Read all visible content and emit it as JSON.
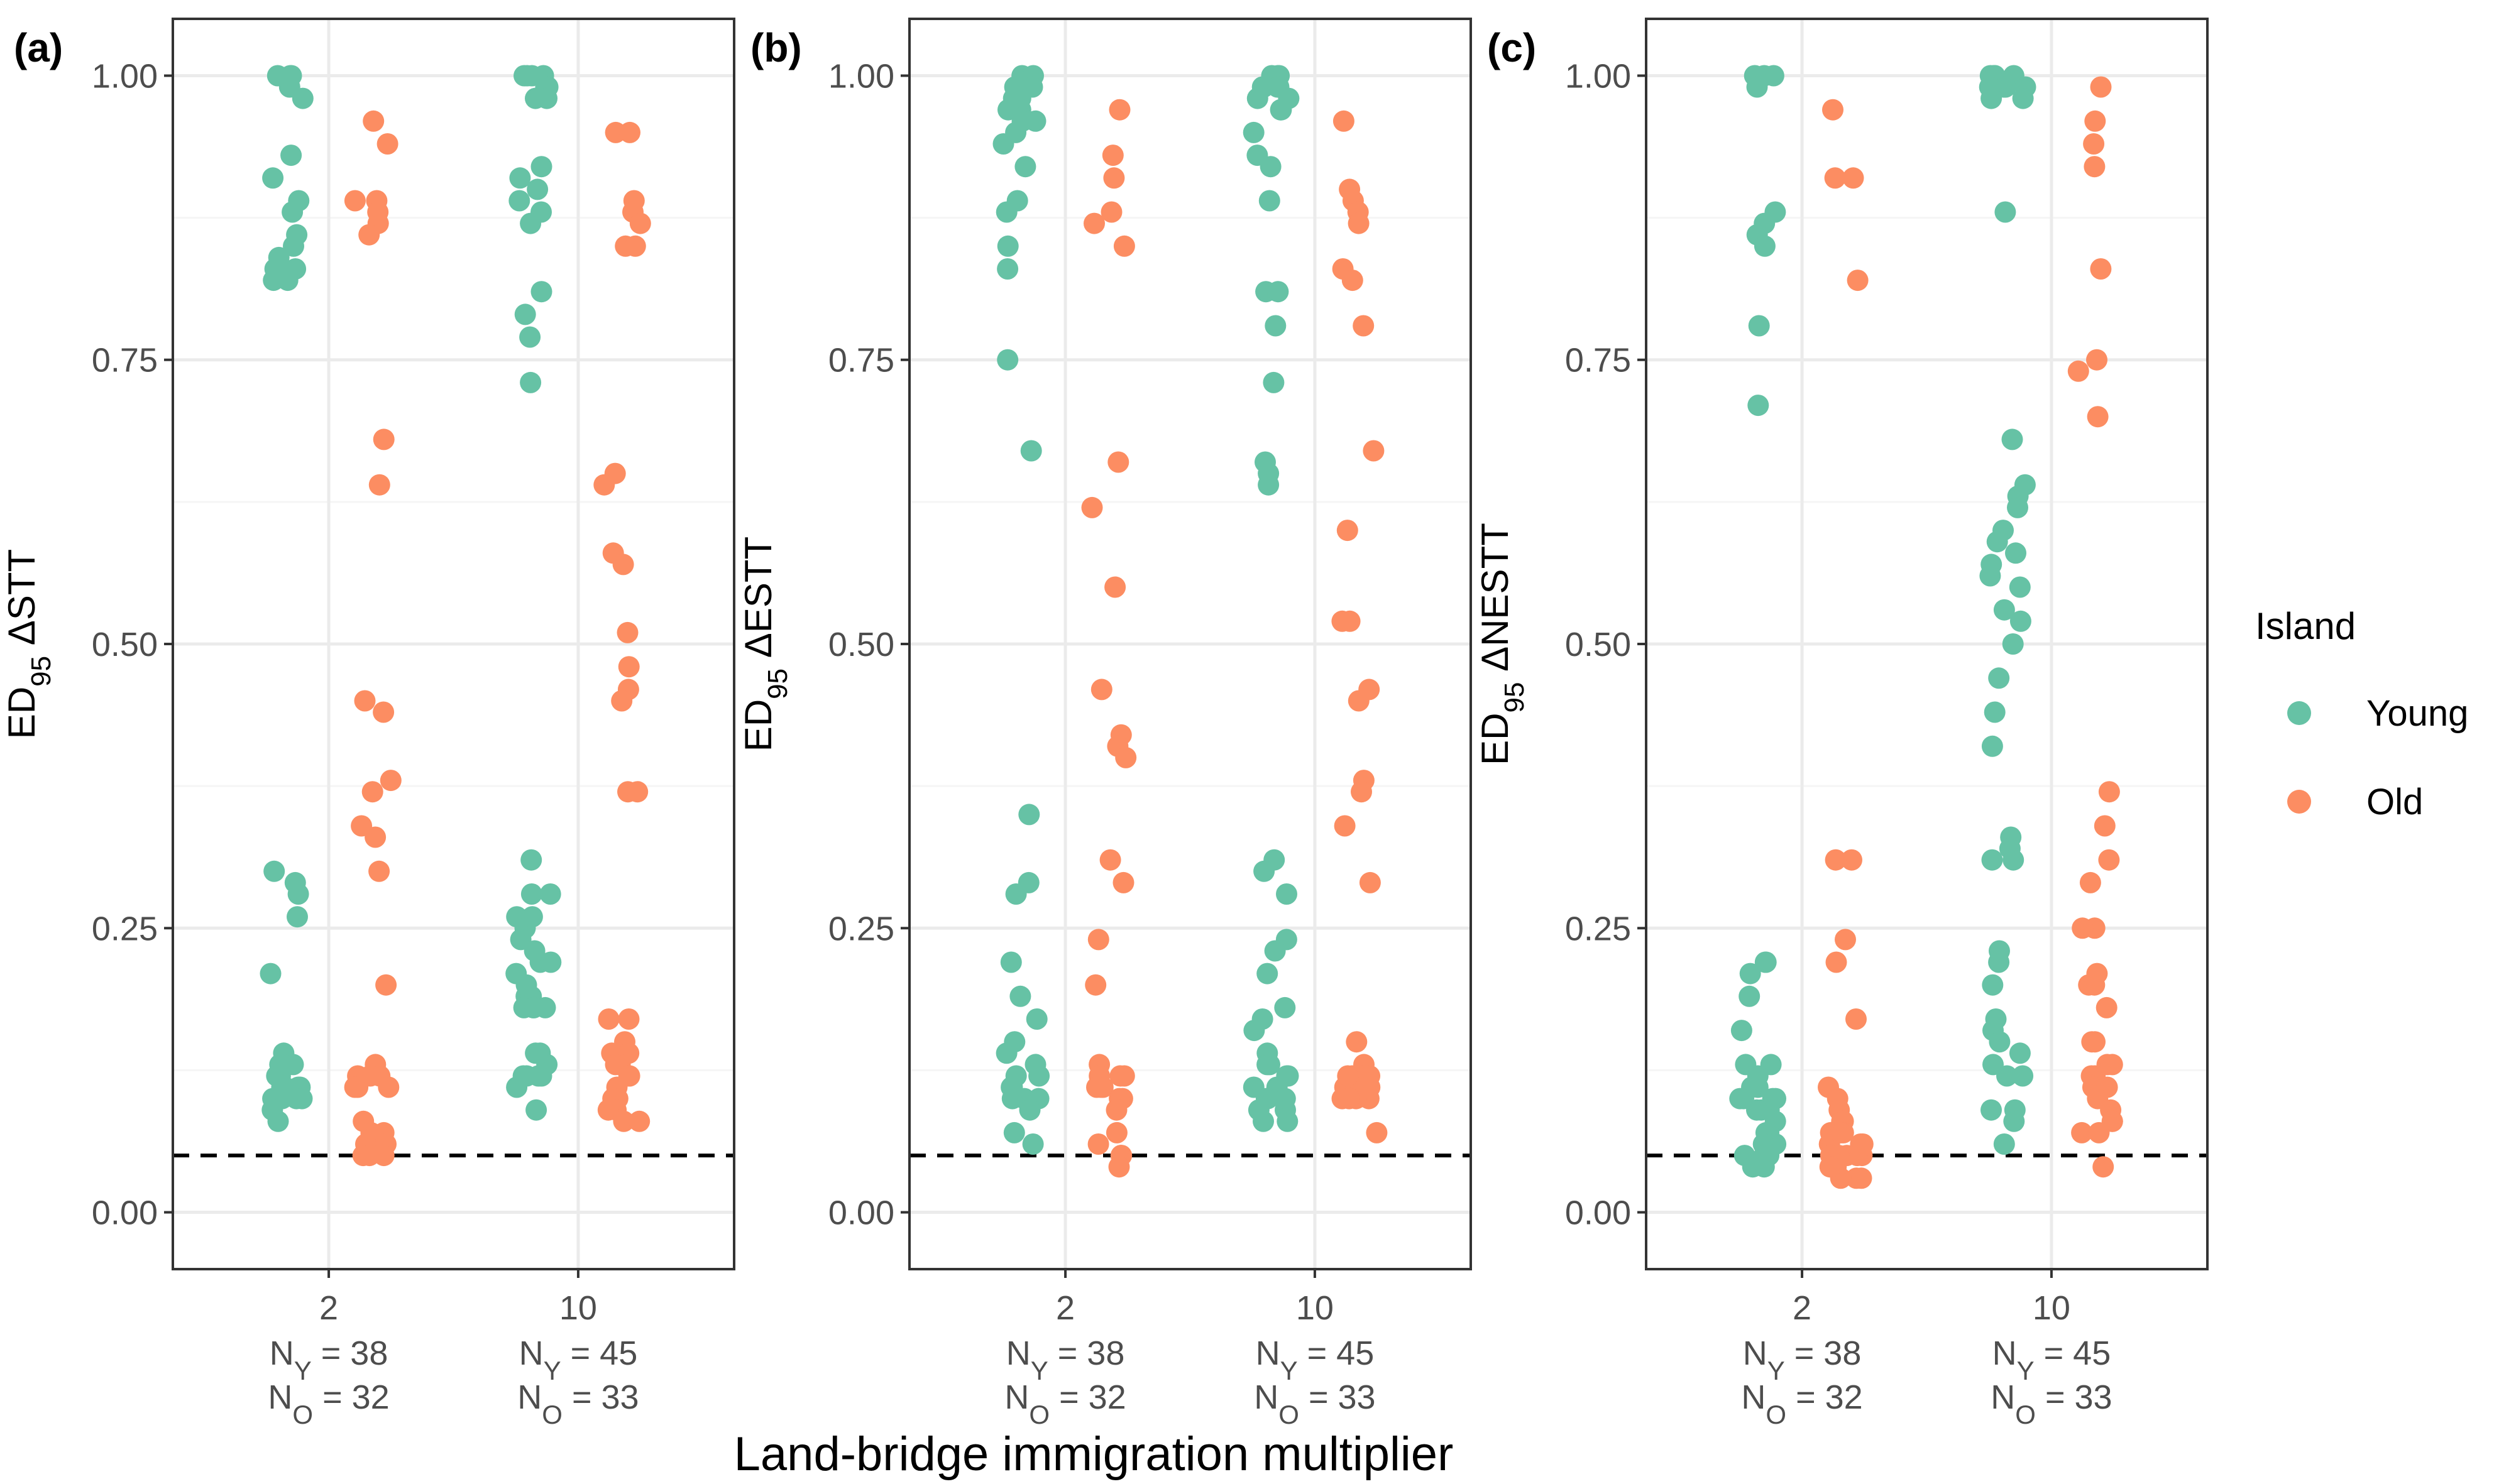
{
  "colors": {
    "young": "#66C2A5",
    "old": "#FC8D62",
    "grid_major": "#EBEBEB",
    "grid_minor": "#F5F5F5",
    "frame": "#333333",
    "tick_text": "#4D4D4D"
  },
  "x_title": "Land-bridge immigration multiplier",
  "legend": {
    "title": "Island",
    "items": [
      {
        "label": "Young",
        "color": "#66C2A5"
      },
      {
        "label": "Old",
        "color": "#FC8D62"
      }
    ]
  },
  "y_ticks": [
    "0.00",
    "0.25",
    "0.50",
    "0.75",
    "1.00"
  ],
  "x_categories": [
    {
      "value": "2",
      "ny": "38",
      "no": "32"
    },
    {
      "value": "10",
      "ny": "45",
      "no": "33"
    }
  ],
  "n_labels": {
    "ny_prefix": "N",
    "ny_sub": "Y",
    "no_prefix": "N",
    "no_sub": "O",
    "eq": " = "
  },
  "chart_data": [
    {
      "type": "scatter",
      "panel": "(a)",
      "ylabel": {
        "prefix": "ED",
        "sub": "95",
        "suffix": " ΔSTT"
      },
      "ylim": [
        -0.05,
        1.05
      ],
      "threshold_line": 0.05,
      "categories": [
        "2",
        "10"
      ],
      "series": [
        {
          "name": "Young",
          "values": [
            [
              1.0,
              1.0,
              0.99,
              0.98,
              1.0,
              0.93,
              0.91,
              0.89,
              0.88,
              0.86,
              0.85,
              0.84,
              0.83,
              0.82,
              0.82,
              0.83,
              0.3,
              0.29,
              0.28,
              0.26,
              0.21,
              0.14,
              0.13,
              0.13,
              0.12,
              0.12,
              0.11,
              0.11,
              0.11,
              0.1,
              0.1,
              0.1,
              0.09,
              0.08,
              0.12,
              0.11,
              0.1,
              0.13
            ],
            [
              1.0,
              1.0,
              1.0,
              0.99,
              0.99,
              1.0,
              0.98,
              0.98,
              0.92,
              0.91,
              0.9,
              0.89,
              0.88,
              0.87,
              0.81,
              0.79,
              0.77,
              0.73,
              0.31,
              0.28,
              0.28,
              0.26,
              0.25,
              0.24,
              0.22,
              0.21,
              0.2,
              0.19,
              0.19,
              0.18,
              0.18,
              0.18,
              0.14,
              0.13,
              0.12,
              0.12,
              0.11,
              0.09,
              0.26,
              0.23,
              0.14,
              0.12,
              0.18,
              0.22,
              0.12
            ]
          ]
        },
        {
          "name": "Old",
          "values": [
            [
              0.96,
              0.94,
              0.89,
              0.89,
              0.88,
              0.87,
              0.86,
              0.68,
              0.64,
              0.45,
              0.44,
              0.38,
              0.37,
              0.34,
              0.33,
              0.3,
              0.2,
              0.13,
              0.12,
              0.12,
              0.11,
              0.11,
              0.08,
              0.07,
              0.07,
              0.06,
              0.06,
              0.05,
              0.05,
              0.05,
              0.12,
              0.11
            ],
            [
              0.95,
              0.95,
              0.89,
              0.88,
              0.87,
              0.85,
              0.85,
              0.65,
              0.64,
              0.58,
              0.57,
              0.51,
              0.48,
              0.46,
              0.45,
              0.37,
              0.37,
              0.17,
              0.17,
              0.15,
              0.14,
              0.14,
              0.13,
              0.13,
              0.12,
              0.11,
              0.1,
              0.1,
              0.09,
              0.09,
              0.08,
              0.08,
              0.12
            ]
          ]
        }
      ]
    },
    {
      "type": "scatter",
      "panel": "(b)",
      "ylabel": {
        "prefix": "ED",
        "sub": "95",
        "suffix": " ΔESTT"
      },
      "ylim": [
        -0.05,
        1.05
      ],
      "threshold_line": 0.05,
      "categories": [
        "2",
        "10"
      ],
      "series": [
        {
          "name": "Young",
          "values": [
            [
              1.0,
              1.0,
              0.99,
              0.99,
              0.98,
              0.97,
              0.97,
              0.96,
              0.95,
              0.94,
              0.92,
              0.89,
              0.88,
              0.85,
              0.83,
              0.75,
              0.67,
              0.35,
              0.29,
              0.28,
              0.22,
              0.19,
              0.17,
              0.15,
              0.14,
              0.13,
              0.12,
              0.12,
              0.11,
              0.11,
              0.1,
              0.1,
              0.1,
              0.09,
              0.07,
              0.06,
              0.98,
              0.96
            ],
            [
              1.0,
              1.0,
              1.0,
              0.99,
              0.99,
              0.98,
              0.97,
              0.95,
              0.93,
              0.92,
              0.89,
              0.81,
              0.81,
              0.78,
              0.73,
              0.66,
              0.65,
              0.64,
              0.31,
              0.3,
              0.28,
              0.24,
              0.23,
              0.21,
              0.18,
              0.17,
              0.16,
              0.14,
              0.13,
              0.12,
              0.12,
              0.11,
              0.1,
              0.1,
              0.09,
              0.09,
              0.08,
              0.08,
              0.99,
              0.98,
              0.97,
              0.13,
              0.11,
              0.1,
              0.99
            ]
          ]
        },
        {
          "name": "Old",
          "values": [
            [
              0.97,
              0.93,
              0.91,
              0.88,
              0.87,
              0.85,
              0.66,
              0.62,
              0.55,
              0.46,
              0.42,
              0.41,
              0.4,
              0.31,
              0.29,
              0.24,
              0.2,
              0.13,
              0.12,
              0.12,
              0.11,
              0.11,
              0.1,
              0.1,
              0.09,
              0.07,
              0.06,
              0.05,
              0.05,
              0.04,
              0.12,
              0.11
            ],
            [
              0.96,
              0.9,
              0.89,
              0.88,
              0.87,
              0.83,
              0.82,
              0.78,
              0.67,
              0.6,
              0.52,
              0.52,
              0.46,
              0.45,
              0.38,
              0.37,
              0.34,
              0.29,
              0.15,
              0.13,
              0.12,
              0.12,
              0.11,
              0.11,
              0.11,
              0.1,
              0.1,
              0.1,
              0.07,
              0.12,
              0.11,
              0.1,
              0.12
            ]
          ]
        }
      ]
    },
    {
      "type": "scatter",
      "panel": "(c)",
      "ylabel": {
        "prefix": "ED",
        "sub": "95",
        "suffix": " ΔNESTT"
      },
      "ylim": [
        -0.05,
        1.05
      ],
      "threshold_line": 0.05,
      "categories": [
        "2",
        "10"
      ],
      "series": [
        {
          "name": "Young",
          "values": [
            [
              1.0,
              1.0,
              1.0,
              0.99,
              0.88,
              0.87,
              0.86,
              0.85,
              0.78,
              0.71,
              0.22,
              0.22,
              0.21,
              0.19,
              0.16,
              0.13,
              0.13,
              0.11,
              0.11,
              0.1,
              0.1,
              0.1,
              0.09,
              0.09,
              0.08,
              0.07,
              0.07,
              0.06,
              0.06,
              0.06,
              0.05,
              0.05,
              0.05,
              0.04,
              0.04,
              0.12,
              0.1,
              0.09
            ],
            [
              1.0,
              1.0,
              1.0,
              1.0,
              0.99,
              0.99,
              0.99,
              0.98,
              0.98,
              0.88,
              0.68,
              0.64,
              0.63,
              0.62,
              0.6,
              0.59,
              0.58,
              0.57,
              0.56,
              0.55,
              0.53,
              0.52,
              0.5,
              0.47,
              0.44,
              0.41,
              0.33,
              0.32,
              0.31,
              0.31,
              0.23,
              0.22,
              0.2,
              0.17,
              0.16,
              0.15,
              0.14,
              0.13,
              0.12,
              0.12,
              0.09,
              0.09,
              0.08,
              0.06,
              0.99
            ]
          ]
        },
        {
          "name": "Old",
          "values": [
            [
              0.97,
              0.91,
              0.91,
              0.82,
              0.31,
              0.31,
              0.24,
              0.22,
              0.17,
              0.11,
              0.1,
              0.09,
              0.08,
              0.08,
              0.07,
              0.07,
              0.06,
              0.06,
              0.05,
              0.05,
              0.05,
              0.05,
              0.04,
              0.04,
              0.04,
              0.03,
              0.03,
              0.03,
              0.06,
              0.05,
              0.04,
              0.07
            ],
            [
              0.99,
              0.96,
              0.94,
              0.92,
              0.83,
              0.75,
              0.74,
              0.7,
              0.37,
              0.34,
              0.31,
              0.29,
              0.25,
              0.25,
              0.21,
              0.2,
              0.2,
              0.18,
              0.15,
              0.15,
              0.13,
              0.13,
              0.12,
              0.12,
              0.11,
              0.11,
              0.1,
              0.09,
              0.08,
              0.08,
              0.07,
              0.07,
              0.04
            ]
          ]
        }
      ]
    }
  ]
}
